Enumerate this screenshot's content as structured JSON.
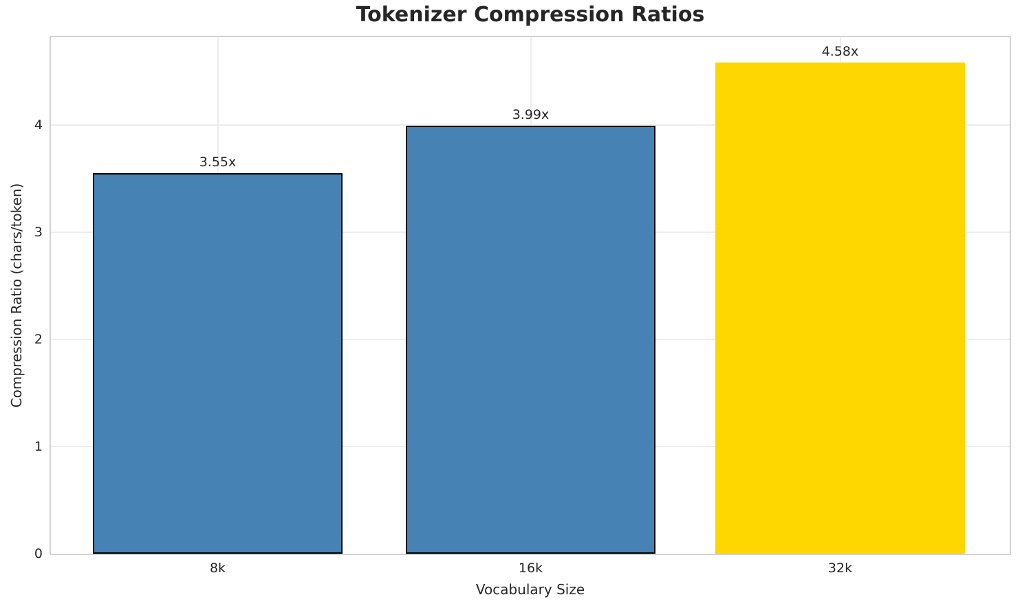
{
  "chart_data": {
    "type": "bar",
    "title": "Tokenizer Compression Ratios",
    "xlabel": "Vocabulary Size",
    "ylabel": "Compression Ratio (chars/token)",
    "categories": [
      "8k",
      "16k",
      "32k"
    ],
    "values": [
      3.55,
      3.99,
      4.58
    ],
    "bar_labels": [
      "3.55x",
      "3.99x",
      "4.58x"
    ],
    "bar_colors": [
      "#4682B4",
      "#4682B4",
      "#FFD700"
    ],
    "bar_edge_colors": [
      "#000000",
      "#000000",
      "transparent"
    ],
    "yticks": [
      0,
      1,
      2,
      3,
      4
    ],
    "ylim": [
      0,
      4.82
    ],
    "grid": true,
    "legend_position": "none",
    "palette": {
      "grid_color": "#ededed",
      "spine_color": "#d2d2d2",
      "text_color": "#262626",
      "background": "#ffffff"
    }
  }
}
